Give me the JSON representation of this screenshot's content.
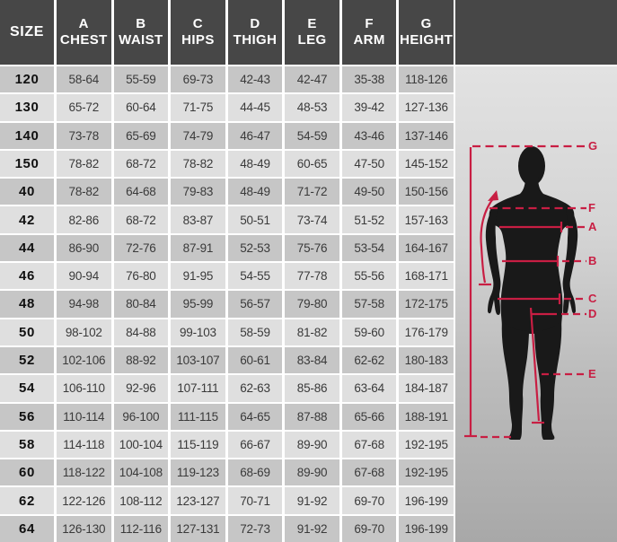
{
  "chart_data": {
    "type": "table",
    "columns": [
      "SIZE",
      "A CHEST",
      "B WAIST",
      "C HIPS",
      "D THIGH",
      "E LEG",
      "F ARM",
      "G HEIGHT"
    ],
    "rows": [
      [
        "120",
        "58-64",
        "55-59",
        "69-73",
        "42-43",
        "42-47",
        "35-38",
        "118-126"
      ],
      [
        "130",
        "65-72",
        "60-64",
        "71-75",
        "44-45",
        "48-53",
        "39-42",
        "127-136"
      ],
      [
        "140",
        "73-78",
        "65-69",
        "74-79",
        "46-47",
        "54-59",
        "43-46",
        "137-146"
      ],
      [
        "150",
        "78-82",
        "68-72",
        "78-82",
        "48-49",
        "60-65",
        "47-50",
        "145-152"
      ],
      [
        "40",
        "78-82",
        "64-68",
        "79-83",
        "48-49",
        "71-72",
        "49-50",
        "150-156"
      ],
      [
        "42",
        "82-86",
        "68-72",
        "83-87",
        "50-51",
        "73-74",
        "51-52",
        "157-163"
      ],
      [
        "44",
        "86-90",
        "72-76",
        "87-91",
        "52-53",
        "75-76",
        "53-54",
        "164-167"
      ],
      [
        "46",
        "90-94",
        "76-80",
        "91-95",
        "54-55",
        "77-78",
        "55-56",
        "168-171"
      ],
      [
        "48",
        "94-98",
        "80-84",
        "95-99",
        "56-57",
        "79-80",
        "57-58",
        "172-175"
      ],
      [
        "50",
        "98-102",
        "84-88",
        "99-103",
        "58-59",
        "81-82",
        "59-60",
        "176-179"
      ],
      [
        "52",
        "102-106",
        "88-92",
        "103-107",
        "60-61",
        "83-84",
        "62-62",
        "180-183"
      ],
      [
        "54",
        "106-110",
        "92-96",
        "107-111",
        "62-63",
        "85-86",
        "63-64",
        "184-187"
      ],
      [
        "56",
        "110-114",
        "96-100",
        "111-115",
        "64-65",
        "87-88",
        "65-66",
        "188-191"
      ],
      [
        "58",
        "114-118",
        "100-104",
        "115-119",
        "66-67",
        "89-90",
        "67-68",
        "192-195"
      ],
      [
        "60",
        "118-122",
        "104-108",
        "119-123",
        "68-69",
        "89-90",
        "67-68",
        "192-195"
      ],
      [
        "62",
        "122-126",
        "108-112",
        "123-127",
        "70-71",
        "91-92",
        "69-70",
        "196-199"
      ],
      [
        "64",
        "126-130",
        "112-116",
        "127-131",
        "72-73",
        "91-92",
        "69-70",
        "196-199"
      ]
    ]
  },
  "header": {
    "size_label": "SIZE",
    "cols": [
      {
        "letter": "A",
        "label": "CHEST"
      },
      {
        "letter": "B",
        "label": "WAIST"
      },
      {
        "letter": "C",
        "label": "HIPS"
      },
      {
        "letter": "D",
        "label": "THIGH"
      },
      {
        "letter": "E",
        "label": "LEG"
      },
      {
        "letter": "F",
        "label": "ARM"
      },
      {
        "letter": "G",
        "label": "HEIGHT"
      }
    ]
  },
  "figure": {
    "description": "human body silhouette with measurement guide lines",
    "labels": [
      "G",
      "F",
      "A",
      "B",
      "C",
      "D",
      "E"
    ]
  },
  "colors": {
    "accent_red": "#c81e43",
    "header_bg": "#474747",
    "row_dark": "#c6c6c6",
    "row_light": "#dfdfdf",
    "silhouette": "#191919"
  }
}
